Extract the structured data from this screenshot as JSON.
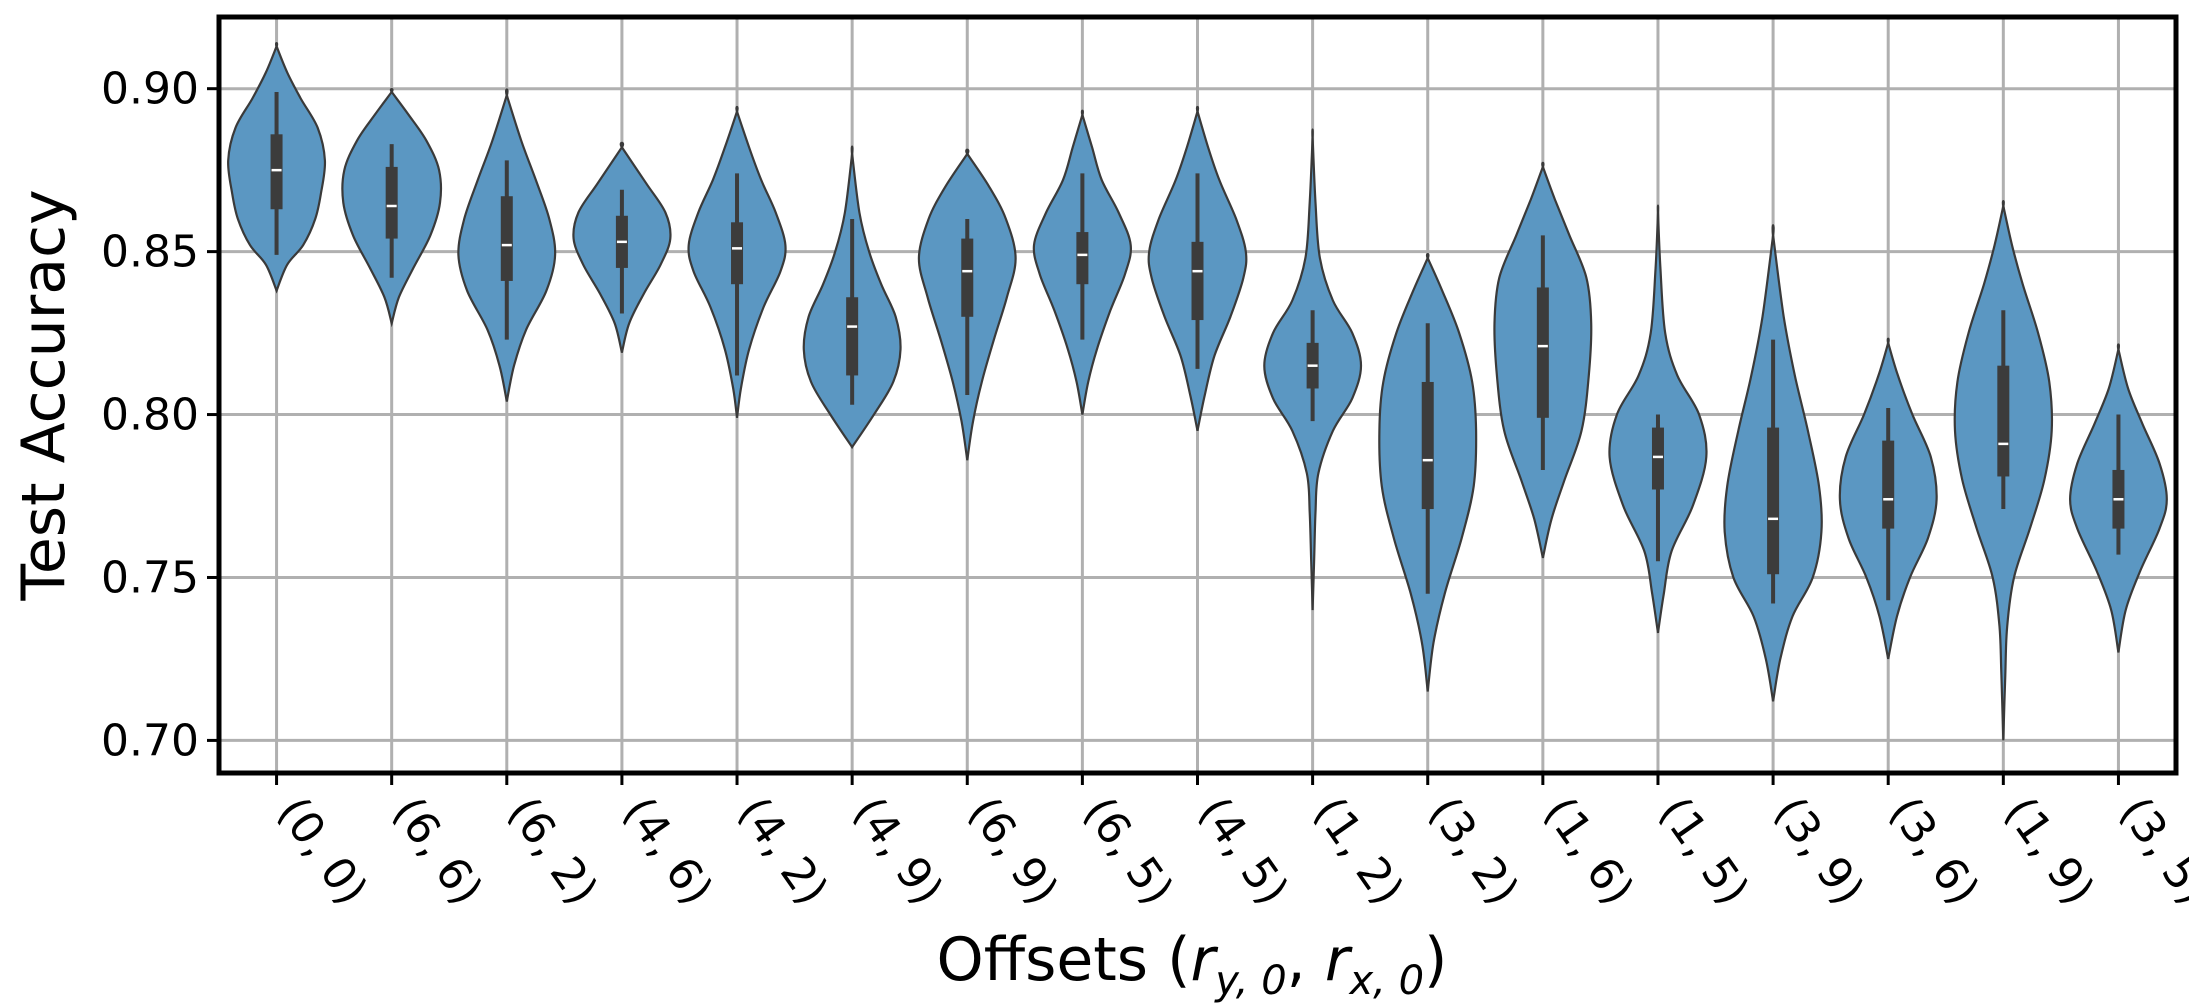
{
  "chart_data": {
    "type": "violin",
    "title": "",
    "xlabel": "Offsets (r_{y,0}, r_{x,0})",
    "xlabel_parts": {
      "prefix": "Offsets (",
      "sym1": "r",
      "sub1": "y, 0",
      "sep": ", ",
      "sym2": "r",
      "sub2": "x, 0",
      "suffix": ")"
    },
    "ylabel": "Test Accuracy",
    "ylim": [
      0.69,
      0.922
    ],
    "yticks": [
      0.7,
      0.75,
      0.8,
      0.85,
      0.9
    ],
    "ytick_labels": [
      "0.70",
      "0.75",
      "0.80",
      "0.85",
      "0.90"
    ],
    "grid": true,
    "violin_color": "#5b97c2",
    "edge_color": "#3a3a3a",
    "box_color": "#3c3c3c",
    "median_color": "#ffffff",
    "categories": [
      "(0, 0)",
      "(6, 6)",
      "(6, 2)",
      "(4, 6)",
      "(4, 2)",
      "(4, 9)",
      "(6, 9)",
      "(6, 5)",
      "(4, 5)",
      "(1, 2)",
      "(3, 2)",
      "(1, 6)",
      "(1, 5)",
      "(3, 9)",
      "(3, 6)",
      "(1, 9)",
      "(3, 5)"
    ],
    "violins": [
      {
        "label": "(0, 0)",
        "min": 0.838,
        "max": 0.913,
        "whisker_low": 0.849,
        "whisker_high": 0.899,
        "q1": 0.863,
        "median": 0.875,
        "q3": 0.886,
        "profile": [
          [
            0.838,
            0
          ],
          [
            0.846,
            0.22
          ],
          [
            0.852,
            0.55
          ],
          [
            0.86,
            0.8
          ],
          [
            0.868,
            0.92
          ],
          [
            0.878,
            1.0
          ],
          [
            0.888,
            0.85
          ],
          [
            0.897,
            0.5
          ],
          [
            0.905,
            0.22
          ],
          [
            0.913,
            0
          ]
        ]
      },
      {
        "label": "(6, 6)",
        "min": 0.828,
        "max": 0.899,
        "whisker_low": 0.842,
        "whisker_high": 0.883,
        "q1": 0.854,
        "median": 0.864,
        "q3": 0.876,
        "profile": [
          [
            0.828,
            0
          ],
          [
            0.836,
            0.15
          ],
          [
            0.845,
            0.45
          ],
          [
            0.855,
            0.8
          ],
          [
            0.865,
            1.0
          ],
          [
            0.875,
            0.98
          ],
          [
            0.884,
            0.72
          ],
          [
            0.892,
            0.35
          ],
          [
            0.899,
            0
          ]
        ]
      },
      {
        "label": "(6, 2)",
        "min": 0.804,
        "max": 0.898,
        "whisker_low": 0.823,
        "whisker_high": 0.878,
        "q1": 0.841,
        "median": 0.852,
        "q3": 0.867,
        "profile": [
          [
            0.804,
            0
          ],
          [
            0.815,
            0.15
          ],
          [
            0.826,
            0.4
          ],
          [
            0.838,
            0.82
          ],
          [
            0.849,
            1.0
          ],
          [
            0.86,
            0.88
          ],
          [
            0.872,
            0.6
          ],
          [
            0.884,
            0.3
          ],
          [
            0.898,
            0
          ]
        ]
      },
      {
        "label": "(4, 6)",
        "min": 0.819,
        "max": 0.882,
        "whisker_low": 0.831,
        "whisker_high": 0.869,
        "q1": 0.845,
        "median": 0.853,
        "q3": 0.861,
        "profile": [
          [
            0.819,
            0
          ],
          [
            0.828,
            0.15
          ],
          [
            0.837,
            0.45
          ],
          [
            0.846,
            0.8
          ],
          [
            0.854,
            1.0
          ],
          [
            0.862,
            0.9
          ],
          [
            0.871,
            0.5
          ],
          [
            0.882,
            0
          ]
        ]
      },
      {
        "label": "(4, 2)",
        "min": 0.799,
        "max": 0.893,
        "whisker_low": 0.812,
        "whisker_high": 0.874,
        "q1": 0.84,
        "median": 0.851,
        "q3": 0.859,
        "profile": [
          [
            0.799,
            0
          ],
          [
            0.808,
            0.08
          ],
          [
            0.82,
            0.25
          ],
          [
            0.833,
            0.55
          ],
          [
            0.844,
            0.9
          ],
          [
            0.852,
            1.0
          ],
          [
            0.862,
            0.8
          ],
          [
            0.872,
            0.5
          ],
          [
            0.882,
            0.25
          ],
          [
            0.893,
            0
          ]
        ]
      },
      {
        "label": "(4, 9)",
        "min": 0.79,
        "max": 0.88,
        "whisker_low": 0.803,
        "whisker_high": 0.86,
        "q1": 0.812,
        "median": 0.827,
        "q3": 0.836,
        "profile": [
          [
            0.79,
            0
          ],
          [
            0.8,
            0.45
          ],
          [
            0.81,
            0.85
          ],
          [
            0.82,
            1.0
          ],
          [
            0.83,
            0.9
          ],
          [
            0.84,
            0.6
          ],
          [
            0.85,
            0.35
          ],
          [
            0.862,
            0.15
          ],
          [
            0.88,
            0
          ]
        ]
      },
      {
        "label": "(6, 9)",
        "min": 0.786,
        "max": 0.88,
        "whisker_low": 0.806,
        "whisker_high": 0.86,
        "q1": 0.83,
        "median": 0.844,
        "q3": 0.854,
        "profile": [
          [
            0.786,
            0
          ],
          [
            0.798,
            0.12
          ],
          [
            0.81,
            0.3
          ],
          [
            0.823,
            0.55
          ],
          [
            0.836,
            0.82
          ],
          [
            0.848,
            1.0
          ],
          [
            0.86,
            0.8
          ],
          [
            0.87,
            0.45
          ],
          [
            0.88,
            0
          ]
        ]
      },
      {
        "label": "(6, 5)",
        "min": 0.8,
        "max": 0.892,
        "whisker_low": 0.823,
        "whisker_high": 0.874,
        "q1": 0.84,
        "median": 0.849,
        "q3": 0.856,
        "profile": [
          [
            0.8,
            0
          ],
          [
            0.81,
            0.12
          ],
          [
            0.82,
            0.3
          ],
          [
            0.832,
            0.58
          ],
          [
            0.843,
            0.88
          ],
          [
            0.852,
            1.0
          ],
          [
            0.862,
            0.75
          ],
          [
            0.872,
            0.4
          ],
          [
            0.882,
            0.2
          ],
          [
            0.892,
            0
          ]
        ]
      },
      {
        "label": "(4, 5)",
        "min": 0.795,
        "max": 0.893,
        "whisker_low": 0.814,
        "whisker_high": 0.874,
        "q1": 0.829,
        "median": 0.844,
        "q3": 0.853,
        "profile": [
          [
            0.795,
            0
          ],
          [
            0.806,
            0.15
          ],
          [
            0.818,
            0.35
          ],
          [
            0.83,
            0.68
          ],
          [
            0.842,
            0.95
          ],
          [
            0.85,
            1.0
          ],
          [
            0.86,
            0.8
          ],
          [
            0.872,
            0.45
          ],
          [
            0.882,
            0.22
          ],
          [
            0.893,
            0
          ]
        ]
      },
      {
        "label": "(1, 2)",
        "min": 0.74,
        "max": 0.885,
        "whisker_low": 0.798,
        "whisker_high": 0.832,
        "q1": 0.808,
        "median": 0.815,
        "q3": 0.822,
        "profile": [
          [
            0.74,
            0
          ],
          [
            0.755,
            0.03
          ],
          [
            0.77,
            0.06
          ],
          [
            0.782,
            0.12
          ],
          [
            0.795,
            0.42
          ],
          [
            0.805,
            0.82
          ],
          [
            0.815,
            1.0
          ],
          [
            0.825,
            0.82
          ],
          [
            0.835,
            0.42
          ],
          [
            0.848,
            0.15
          ],
          [
            0.865,
            0.06
          ],
          [
            0.885,
            0
          ]
        ]
      },
      {
        "label": "(3, 2)",
        "min": 0.715,
        "max": 0.848,
        "whisker_low": 0.745,
        "whisker_high": 0.828,
        "q1": 0.771,
        "median": 0.786,
        "q3": 0.81,
        "profile": [
          [
            0.715,
            0
          ],
          [
            0.73,
            0.12
          ],
          [
            0.745,
            0.35
          ],
          [
            0.762,
            0.7
          ],
          [
            0.778,
            0.95
          ],
          [
            0.795,
            1.0
          ],
          [
            0.81,
            0.92
          ],
          [
            0.825,
            0.65
          ],
          [
            0.838,
            0.3
          ],
          [
            0.848,
            0
          ]
        ]
      },
      {
        "label": "(1, 6)",
        "min": 0.756,
        "max": 0.876,
        "whisker_low": 0.783,
        "whisker_high": 0.855,
        "q1": 0.799,
        "median": 0.821,
        "q3": 0.839,
        "profile": [
          [
            0.756,
            0
          ],
          [
            0.768,
            0.18
          ],
          [
            0.78,
            0.45
          ],
          [
            0.795,
            0.8
          ],
          [
            0.812,
            0.95
          ],
          [
            0.828,
            1.0
          ],
          [
            0.842,
            0.9
          ],
          [
            0.855,
            0.55
          ],
          [
            0.866,
            0.25
          ],
          [
            0.876,
            0
          ]
        ]
      },
      {
        "label": "(1, 5)",
        "min": 0.733,
        "max": 0.862,
        "whisker_low": 0.755,
        "whisker_high": 0.8,
        "q1": 0.777,
        "median": 0.787,
        "q3": 0.796,
        "profile": [
          [
            0.733,
            0
          ],
          [
            0.745,
            0.12
          ],
          [
            0.758,
            0.28
          ],
          [
            0.772,
            0.72
          ],
          [
            0.787,
            1.0
          ],
          [
            0.8,
            0.85
          ],
          [
            0.812,
            0.4
          ],
          [
            0.825,
            0.15
          ],
          [
            0.845,
            0.05
          ],
          [
            0.862,
            0
          ]
        ]
      },
      {
        "label": "(3, 9)",
        "min": 0.712,
        "max": 0.855,
        "whisker_low": 0.742,
        "whisker_high": 0.823,
        "q1": 0.751,
        "median": 0.768,
        "q3": 0.796,
        "profile": [
          [
            0.712,
            0
          ],
          [
            0.725,
            0.15
          ],
          [
            0.738,
            0.4
          ],
          [
            0.75,
            0.82
          ],
          [
            0.764,
            1.0
          ],
          [
            0.778,
            0.95
          ],
          [
            0.795,
            0.72
          ],
          [
            0.812,
            0.45
          ],
          [
            0.83,
            0.22
          ],
          [
            0.855,
            0
          ]
        ]
      },
      {
        "label": "(3, 6)",
        "min": 0.725,
        "max": 0.822,
        "whisker_low": 0.743,
        "whisker_high": 0.802,
        "q1": 0.765,
        "median": 0.774,
        "q3": 0.792,
        "profile": [
          [
            0.725,
            0
          ],
          [
            0.738,
            0.18
          ],
          [
            0.75,
            0.45
          ],
          [
            0.762,
            0.82
          ],
          [
            0.774,
            1.0
          ],
          [
            0.787,
            0.88
          ],
          [
            0.8,
            0.5
          ],
          [
            0.812,
            0.2
          ],
          [
            0.822,
            0
          ]
        ]
      },
      {
        "label": "(1, 9)",
        "min": 0.7,
        "max": 0.864,
        "whisker_low": 0.771,
        "whisker_high": 0.832,
        "q1": 0.781,
        "median": 0.791,
        "q3": 0.815,
        "profile": [
          [
            0.7,
            0
          ],
          [
            0.72,
            0.04
          ],
          [
            0.735,
            0.08
          ],
          [
            0.75,
            0.22
          ],
          [
            0.765,
            0.55
          ],
          [
            0.78,
            0.85
          ],
          [
            0.795,
            1.0
          ],
          [
            0.81,
            0.95
          ],
          [
            0.825,
            0.72
          ],
          [
            0.84,
            0.4
          ],
          [
            0.852,
            0.18
          ],
          [
            0.864,
            0
          ]
        ]
      },
      {
        "label": "(3, 5)",
        "min": 0.727,
        "max": 0.82,
        "whisker_low": 0.757,
        "whisker_high": 0.8,
        "q1": 0.765,
        "median": 0.774,
        "q3": 0.783,
        "profile": [
          [
            0.727,
            0
          ],
          [
            0.74,
            0.15
          ],
          [
            0.752,
            0.45
          ],
          [
            0.765,
            0.85
          ],
          [
            0.774,
            1.0
          ],
          [
            0.785,
            0.85
          ],
          [
            0.797,
            0.5
          ],
          [
            0.808,
            0.2
          ],
          [
            0.82,
            0
          ]
        ]
      }
    ]
  }
}
